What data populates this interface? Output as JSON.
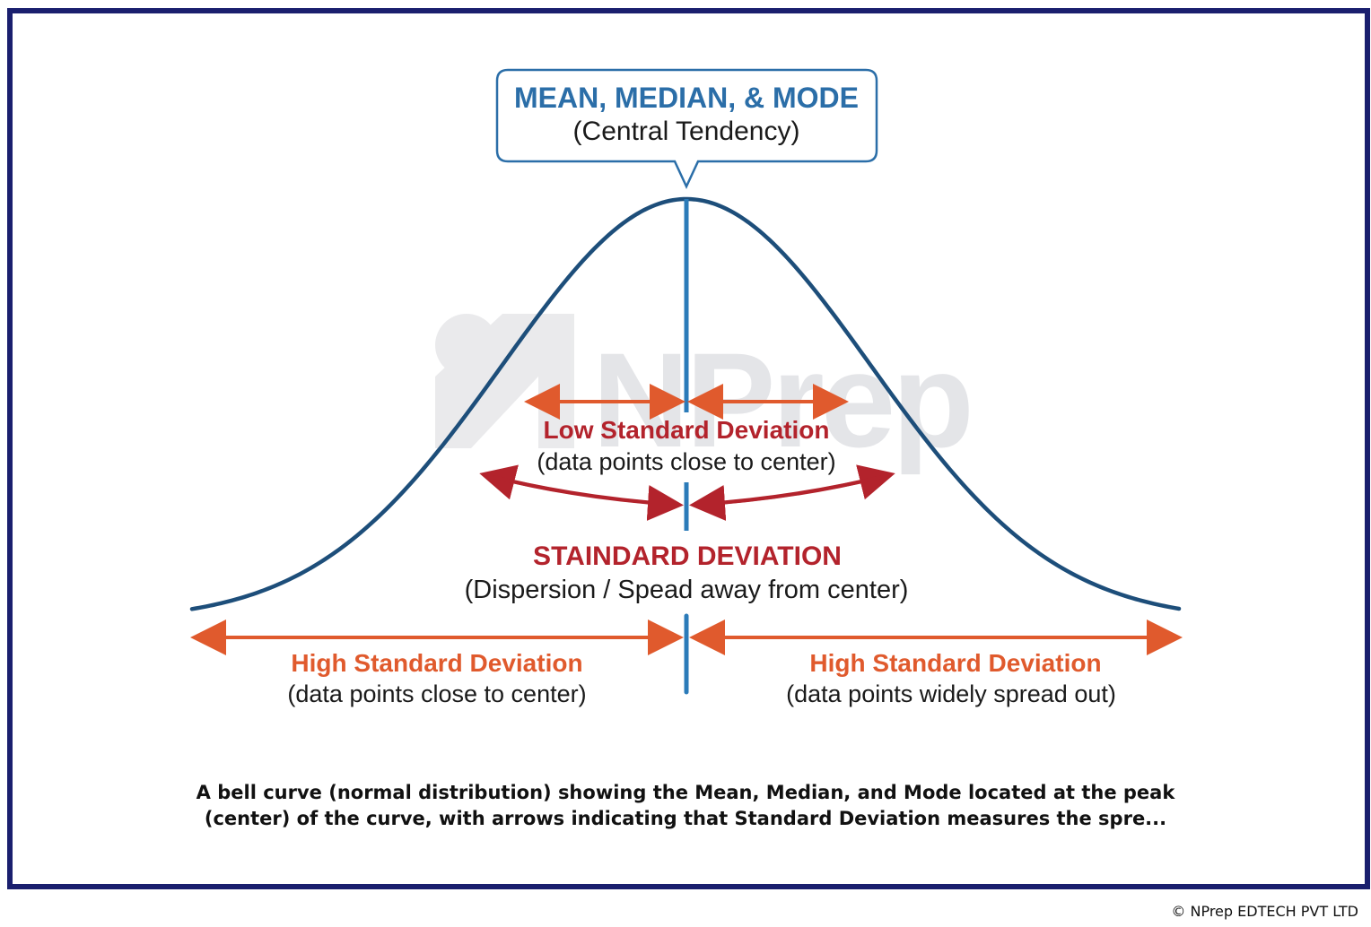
{
  "callout": {
    "title": "MEAN, MEDIAN, & MODE",
    "subtitle": "(Central Tendency)"
  },
  "low_sd": {
    "title": "Low Standard Deviation",
    "subtitle": "(data points close to center)"
  },
  "standard_deviation": {
    "title": "STAINDARD DEVIATION",
    "subtitle": "(Dispersion / Spead away from center)"
  },
  "high_sd_left": {
    "title": "High Standard Deviation",
    "subtitle": "(data points close to center)"
  },
  "high_sd_right": {
    "title": "High Standard Deviation",
    "subtitle": "(data points widely spread out)"
  },
  "watermark": "NPrep",
  "caption": {
    "line1": "A bell curve (normal distribution) showing the Mean, Median, and Mode located at the peak",
    "line2": "(center) of the curve, with arrows indicating that Standard Deviation measures the spre..."
  },
  "copyright": "© NPrep EDTECH PVT LTD",
  "colors": {
    "frame": "#1a1f6e",
    "curve": "#1d4e7a",
    "center_line": "#2b7bb9",
    "orange_arrow": "#e05a2d",
    "red_arrow": "#b3232c",
    "callout_border": "#2b6ea8"
  }
}
